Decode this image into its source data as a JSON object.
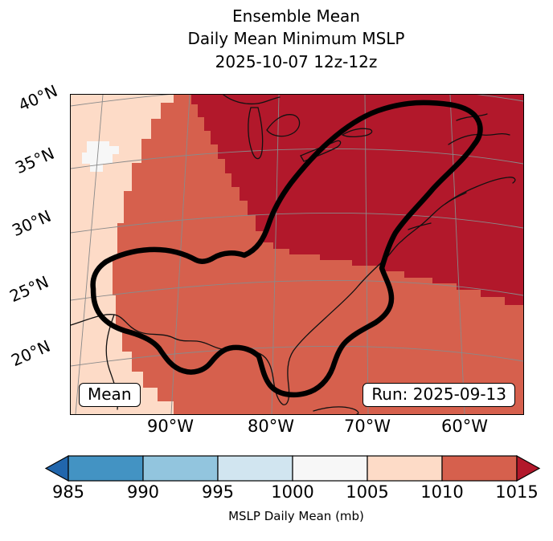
{
  "title": {
    "line1": "Ensemble Mean",
    "line2": "Daily Mean Minimum MSLP",
    "line3": "2025-10-07 12z-12z"
  },
  "map_overlay": {
    "mean_label": "Mean",
    "run_label": "Run: 2025-09-13"
  },
  "axes": {
    "lat": [
      "40°N",
      "35°N",
      "30°N",
      "25°N",
      "20°N"
    ],
    "lon": [
      "90°W",
      "80°W",
      "70°W",
      "60°W"
    ]
  },
  "colorbar": {
    "label": "MSLP Daily Mean (mb)",
    "ticks": [
      "985",
      "990",
      "995",
      "1000",
      "1005",
      "1010",
      "1015"
    ],
    "segment_colors": [
      "#4393c3",
      "#92c5de",
      "#d1e5f0",
      "#f7f7f7",
      "#fddbc7",
      "#d6604d"
    ],
    "under_color": "#2166ac",
    "over_color": "#b2182b",
    "outline_color": "#000000"
  },
  "chart_data": {
    "type": "heatmap",
    "subtype": "filled-contour-weather-map",
    "title": "Ensemble Mean",
    "subtitle": "Daily Mean Minimum MSLP",
    "valid_time": "2025-10-07 12z-12z",
    "annotations": [
      "Mean",
      "Run: 2025-09-13"
    ],
    "colorbar_label": "MSLP Daily Mean (mb)",
    "levels_mb": [
      985,
      990,
      995,
      1000,
      1005,
      1010,
      1015
    ],
    "colorbar_colors": [
      "#4393c3",
      "#92c5de",
      "#d1e5f0",
      "#f7f7f7",
      "#fddbc7",
      "#d6604d"
    ],
    "extend_colors": {
      "under": "#2166ac",
      "over": "#b2182b"
    },
    "lat_ticks": [
      "40°N",
      "35°N",
      "30°N",
      "25°N",
      "20°N"
    ],
    "lon_ticks": [
      "90°W",
      "80°W",
      "70°W",
      "60°W"
    ],
    "map_extent": {
      "lat": "≈18°N–41°N",
      "lon": "≈100°W–55°W"
    },
    "field_regions": [
      {
        "value_range_mb": "> 1015",
        "color": "#b2182b",
        "area": "northeastern quadrant / northwest Atlantic and Great Lakes to Canadian Maritimes"
      },
      {
        "value_range_mb": "1010–1015",
        "color": "#d6604d",
        "area": "most of the domain: Gulf of Mexico, southeastern US, Caribbean side"
      },
      {
        "value_range_mb": "1005–1010",
        "color": "#fddbc7",
        "area": "band along the western edge (Texas / Mexico), widening southward"
      },
      {
        "value_range_mb": "1000–1005",
        "color": "#f7f7f7",
        "area": "small patch near 35°N at the far western edge"
      }
    ],
    "highlight_contour": "thick black closed contour enclosing the Gulf of Mexico coast and extending northeast along the US East Coast to the Canadian Maritimes",
    "grid": "gray graticule lines at 5° latitude / 10° longitude",
    "legend_position": "horizontal colorbar below map with under/over arrows"
  }
}
